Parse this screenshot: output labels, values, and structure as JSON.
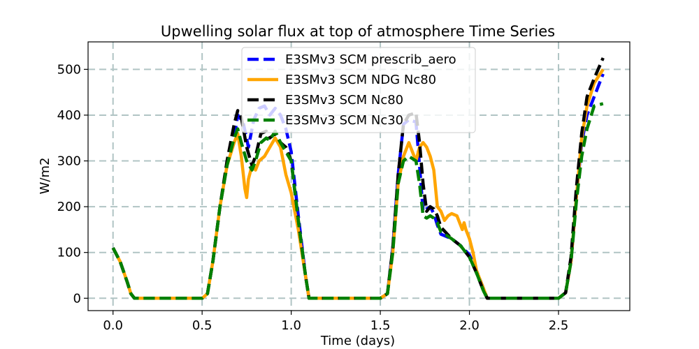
{
  "chart_data": {
    "type": "line",
    "title": "Upwelling solar flux at top of atmosphere Time Series",
    "xlabel": "Time (days)",
    "ylabel": "W/m2",
    "xlim": [
      -0.14,
      2.9
    ],
    "ylim": [
      -27,
      560
    ],
    "xticks": [
      0.0,
      0.5,
      1.0,
      1.5,
      2.0,
      2.5
    ],
    "xtick_labels": [
      "0.0",
      "0.5",
      "1.0",
      "1.5",
      "2.0",
      "2.5"
    ],
    "yticks": [
      0,
      100,
      200,
      300,
      400,
      500
    ],
    "ytick_labels": [
      "0",
      "100",
      "200",
      "300",
      "400",
      "500"
    ],
    "grid": true,
    "legend_position": "top-center",
    "series": [
      {
        "name": "E3SMv3 SCM prescrib_aero",
        "color": "#0000ff",
        "dashed": true,
        "x": [
          0.0,
          0.04,
          0.08,
          0.1,
          0.12,
          0.5,
          0.53,
          0.56,
          0.6,
          0.64,
          0.68,
          0.7,
          0.73,
          0.76,
          0.79,
          0.82,
          0.85,
          0.88,
          0.91,
          0.94,
          0.97,
          1.0,
          1.04,
          1.08,
          1.1,
          1.12,
          1.5,
          1.54,
          1.57,
          1.6,
          1.63,
          1.66,
          1.7,
          1.72,
          1.74,
          1.76,
          1.78,
          1.8,
          1.82,
          1.84,
          1.9,
          1.95,
          2.0,
          2.04,
          2.08,
          2.1,
          2.12,
          2.5,
          2.54,
          2.57,
          2.6,
          2.63,
          2.66,
          2.7,
          2.75
        ],
        "y": [
          110,
          80,
          35,
          10,
          0,
          0,
          10,
          80,
          200,
          290,
          350,
          400,
          385,
          330,
          390,
          415,
          420,
          400,
          415,
          400,
          370,
          320,
          180,
          50,
          0,
          0,
          0,
          10,
          110,
          270,
          380,
          390,
          385,
          290,
          190,
          195,
          200,
          185,
          160,
          140,
          130,
          115,
          95,
          60,
          20,
          0,
          0,
          0,
          12,
          80,
          220,
          340,
          400,
          440,
          490
        ]
      },
      {
        "name": "E3SMv3 SCM NDG Nc80",
        "color": "#ffa500",
        "dashed": false,
        "x": [
          0.0,
          0.04,
          0.08,
          0.1,
          0.12,
          0.5,
          0.53,
          0.56,
          0.6,
          0.64,
          0.68,
          0.7,
          0.72,
          0.74,
          0.75,
          0.76,
          0.78,
          0.8,
          0.82,
          0.85,
          0.88,
          0.91,
          0.94,
          0.97,
          1.0,
          1.04,
          1.08,
          1.1,
          1.12,
          1.5,
          1.54,
          1.57,
          1.6,
          1.63,
          1.66,
          1.68,
          1.7,
          1.72,
          1.74,
          1.76,
          1.78,
          1.8,
          1.82,
          1.84,
          1.86,
          1.88,
          1.9,
          1.93,
          1.96,
          1.97,
          1.98,
          2.0,
          2.02,
          2.04,
          2.08,
          2.1,
          2.12,
          2.5,
          2.54,
          2.57,
          2.6,
          2.63,
          2.66,
          2.7,
          2.75
        ],
        "y": [
          110,
          80,
          35,
          10,
          0,
          0,
          10,
          80,
          200,
          290,
          340,
          360,
          310,
          240,
          220,
          260,
          290,
          280,
          300,
          310,
          330,
          350,
          330,
          270,
          230,
          150,
          50,
          0,
          0,
          0,
          10,
          100,
          250,
          310,
          340,
          320,
          300,
          330,
          340,
          330,
          310,
          280,
          200,
          190,
          170,
          180,
          185,
          180,
          150,
          165,
          150,
          130,
          100,
          60,
          20,
          0,
          0,
          0,
          12,
          80,
          220,
          350,
          420,
          470,
          500
        ]
      },
      {
        "name": "E3SMv3 SCM Nc80",
        "color": "#000000",
        "dashed": true,
        "x": [
          0.0,
          0.04,
          0.08,
          0.1,
          0.12,
          0.5,
          0.53,
          0.56,
          0.6,
          0.64,
          0.68,
          0.7,
          0.72,
          0.75,
          0.78,
          0.8,
          0.83,
          0.86,
          0.88,
          0.91,
          0.94,
          0.97,
          1.0,
          1.04,
          1.08,
          1.1,
          1.12,
          1.5,
          1.54,
          1.57,
          1.6,
          1.63,
          1.66,
          1.7,
          1.72,
          1.74,
          1.76,
          1.78,
          1.8,
          1.82,
          1.84,
          1.9,
          1.95,
          2.0,
          2.04,
          2.08,
          2.1,
          2.12,
          2.5,
          2.54,
          2.57,
          2.6,
          2.63,
          2.66,
          2.7,
          2.75
        ],
        "y": [
          110,
          80,
          35,
          10,
          0,
          0,
          10,
          80,
          200,
          300,
          380,
          410,
          395,
          330,
          290,
          310,
          360,
          365,
          350,
          360,
          340,
          330,
          300,
          170,
          50,
          0,
          0,
          0,
          10,
          110,
          270,
          380,
          400,
          405,
          340,
          250,
          190,
          200,
          195,
          180,
          155,
          130,
          115,
          90,
          55,
          15,
          0,
          0,
          0,
          12,
          90,
          240,
          360,
          440,
          480,
          525
        ]
      },
      {
        "name": "E3SMv3 SCM Nc30",
        "color": "#008000",
        "dashed": true,
        "x": [
          0.0,
          0.04,
          0.08,
          0.1,
          0.12,
          0.5,
          0.53,
          0.56,
          0.6,
          0.64,
          0.68,
          0.7,
          0.72,
          0.75,
          0.78,
          0.8,
          0.83,
          0.86,
          0.88,
          0.91,
          0.94,
          0.97,
          1.0,
          1.04,
          1.08,
          1.1,
          1.12,
          1.5,
          1.54,
          1.57,
          1.6,
          1.63,
          1.66,
          1.7,
          1.72,
          1.74,
          1.76,
          1.78,
          1.8,
          1.82,
          1.84,
          1.9,
          1.95,
          2.0,
          2.04,
          2.08,
          2.1,
          2.12,
          2.5,
          2.54,
          2.57,
          2.6,
          2.63,
          2.66,
          2.7,
          2.75
        ],
        "y": [
          110,
          80,
          35,
          10,
          0,
          0,
          10,
          80,
          200,
          290,
          350,
          370,
          340,
          300,
          280,
          300,
          340,
          350,
          345,
          365,
          340,
          320,
          300,
          170,
          50,
          0,
          0,
          0,
          10,
          100,
          250,
          300,
          310,
          300,
          250,
          180,
          175,
          180,
          175,
          165,
          145,
          130,
          115,
          90,
          55,
          15,
          0,
          0,
          0,
          12,
          80,
          210,
          310,
          370,
          420,
          425
        ]
      }
    ]
  }
}
